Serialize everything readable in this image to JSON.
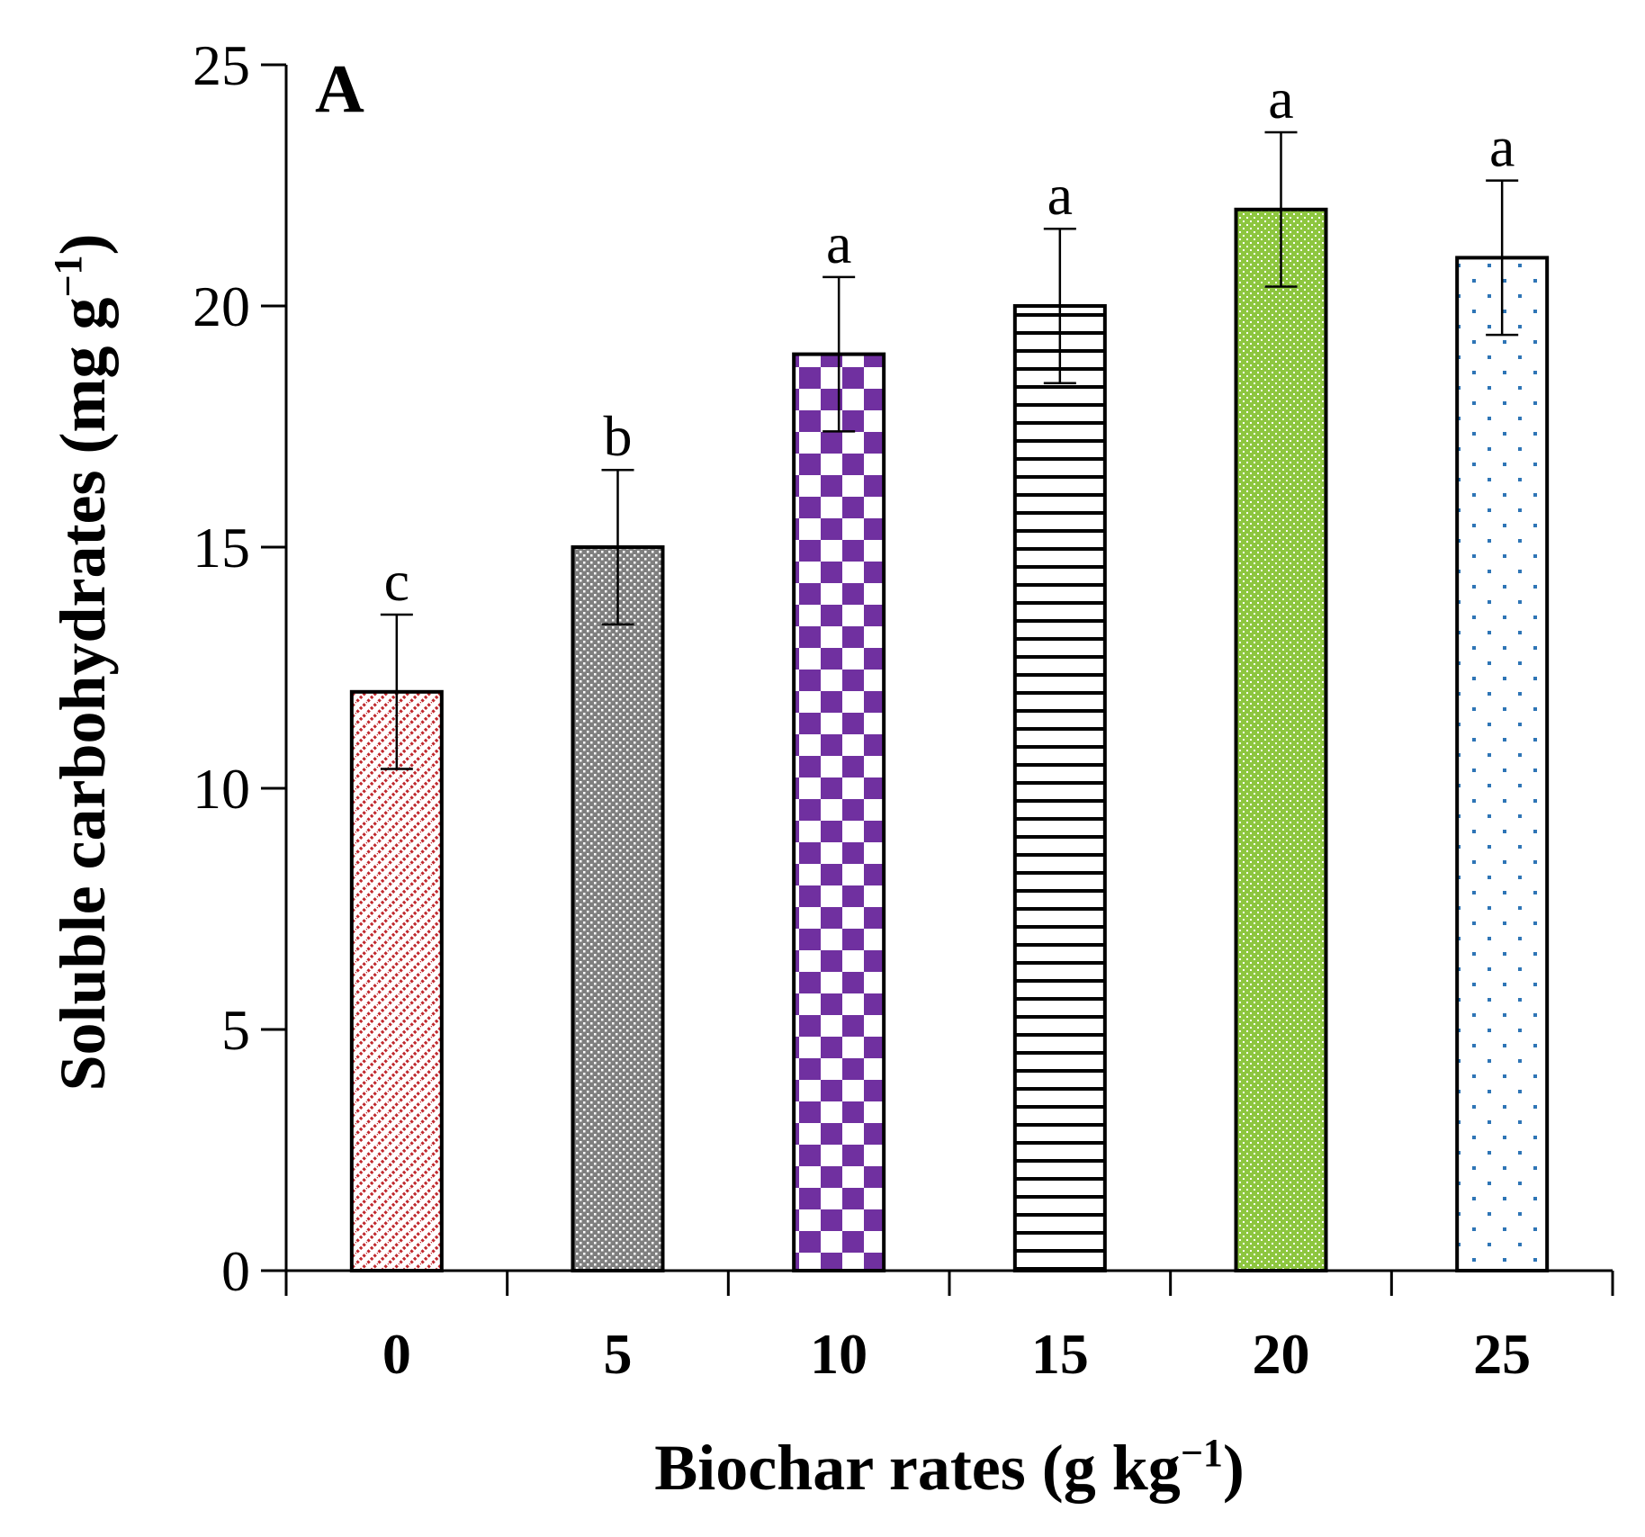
{
  "chart_data": {
    "type": "bar",
    "panel_label": "A",
    "xlabel": "Biochar rates (g kg",
    "xlabel_sup": "−1",
    "xlabel_end": ")",
    "ylabel": "Soluble carbohydrates (mg g",
    "ylabel_sup": "−1",
    "ylabel_end": ")",
    "ylim": [
      0,
      25
    ],
    "yticks": [
      "0",
      "5",
      "10",
      "15",
      "20",
      "25"
    ],
    "categories": [
      "0",
      "5",
      "10",
      "15",
      "20",
      "25"
    ],
    "values": [
      12.0,
      15.0,
      19.0,
      20.0,
      22.0,
      21.0
    ],
    "errors": [
      1.6,
      1.6,
      1.6,
      1.6,
      1.6,
      1.6
    ],
    "significance": [
      "c",
      "b",
      "a",
      "a",
      "a",
      "a"
    ],
    "patterns": [
      "red-diagonal-dots",
      "gray-checker",
      "purple-checker",
      "black-horizontal-lines",
      "green-dotted",
      "blue-dots"
    ],
    "colors": [
      "#c0282d",
      "#7f7f7f",
      "#7030a0",
      "#000000",
      "#8dc63f",
      "#2e75b6"
    ],
    "grid": false,
    "legend": "none"
  }
}
